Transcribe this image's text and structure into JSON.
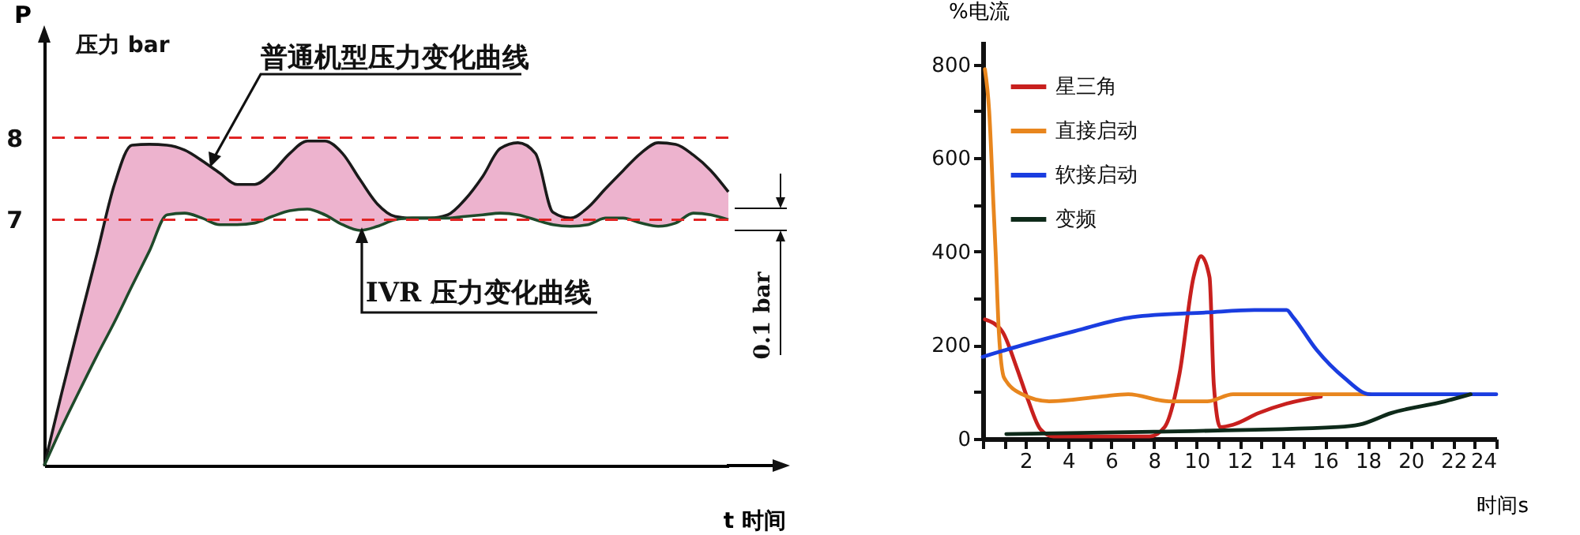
{
  "chart_data": [
    {
      "type": "line",
      "ylabel": "P",
      "xlabel": "t 时间",
      "tick_labels": "y",
      "legend": false,
      "grid": false,
      "annotations": [
        "压力 bar",
        "0.1 bar"
      ],
      "categories": [
        null,
        null,
        null,
        null,
        null,
        null,
        null,
        null,
        null,
        null,
        null,
        null,
        null,
        null,
        null,
        null,
        null,
        null,
        null,
        null,
        null,
        null,
        null,
        null,
        null,
        null,
        null,
        null,
        null,
        null,
        null,
        null,
        null,
        null,
        null,
        null,
        null,
        null,
        null,
        null
      ],
      "ylim": [
        4.0,
        9.2
      ],
      "yticks": [
        7,
        8
      ],
      "ref_lines": [
        {
          "axis": "y",
          "value": 8,
          "color": "#e02424",
          "line_style": "dashed"
        },
        {
          "axis": "y",
          "value": 7,
          "color": "#e02424",
          "line_style": "dashed"
        }
      ],
      "series": [
        {
          "name": "普通机型压力变化曲线",
          "color": "#1a1a1a",
          "values": [
            4.0,
            4.89,
            5.74,
            6.58,
            7.43,
            7.91,
            7.92,
            7.91,
            7.85,
            7.72,
            7.57,
            7.43,
            7.43,
            7.58,
            7.81,
            7.96,
            7.96,
            7.81,
            7.49,
            7.19,
            7.04,
            7.02,
            7.02,
            7.06,
            7.25,
            7.53,
            7.87,
            7.94,
            7.81,
            7.09,
            7.02,
            7.15,
            7.38,
            7.6,
            7.81,
            7.94,
            7.92,
            7.79,
            7.6,
            7.34
          ],
          "lower": [
            4.0,
            4.47,
            4.91,
            5.34,
            5.75,
            6.19,
            6.62,
            7.06,
            7.08,
            7.02,
            6.94,
            6.94,
            6.96,
            7.04,
            7.11,
            7.13,
            7.06,
            6.94,
            6.87,
            6.92,
            7.0,
            7.02,
            7.02,
            7.02,
            7.04,
            7.06,
            7.08,
            7.06,
            7.0,
            6.94,
            6.92,
            6.94,
            7.02,
            7.02,
            6.96,
            6.92,
            6.96,
            7.08,
            7.06,
            7.0
          ],
          "upper": [
            4.0,
            4.89,
            5.74,
            6.58,
            7.43,
            7.91,
            7.92,
            7.91,
            7.85,
            7.72,
            7.57,
            7.43,
            7.43,
            7.58,
            7.81,
            7.96,
            7.96,
            7.81,
            7.49,
            7.19,
            7.04,
            7.02,
            7.02,
            7.06,
            7.25,
            7.53,
            7.87,
            7.94,
            7.81,
            7.09,
            7.02,
            7.15,
            7.38,
            7.6,
            7.81,
            7.94,
            7.92,
            7.79,
            7.6,
            7.34
          ]
        },
        {
          "name": "IVR 压力变化曲线",
          "color": "#1e4a2a",
          "values": [
            4.0,
            4.47,
            4.91,
            5.34,
            5.75,
            6.19,
            6.62,
            7.06,
            7.08,
            7.02,
            6.94,
            6.94,
            6.96,
            7.04,
            7.11,
            7.13,
            7.06,
            6.94,
            6.87,
            6.92,
            7.0,
            7.02,
            7.02,
            7.02,
            7.04,
            7.06,
            7.08,
            7.06,
            7.0,
            6.94,
            6.92,
            6.94,
            7.02,
            7.02,
            6.96,
            6.92,
            6.96,
            7.08,
            7.06,
            7.0
          ]
        }
      ]
    },
    {
      "type": "line",
      "ylabel": "%电流",
      "xlabel": "时间s",
      "legend": "top left",
      "grid": false,
      "xlim": [
        0,
        24
      ],
      "xticks": [
        {
          "value": 0,
          "label": null
        },
        {
          "value": 1,
          "label": null
        },
        2,
        {
          "value": 3,
          "label": null
        },
        4,
        {
          "value": 5,
          "label": null
        },
        6,
        {
          "value": 7,
          "label": null
        },
        8,
        {
          "value": 9,
          "label": null
        },
        10,
        {
          "value": 11,
          "label": null
        },
        12,
        {
          "value": 13,
          "label": null
        },
        14,
        {
          "value": 15,
          "label": null
        },
        16,
        {
          "value": 17,
          "label": null
        },
        18,
        {
          "value": 19,
          "label": null
        },
        20,
        {
          "value": 21,
          "label": null
        },
        22,
        {
          "value": 23,
          "label": null
        },
        24
      ],
      "ylim": [
        0,
        850
      ],
      "yticks": [
        0,
        {
          "value": 100,
          "label": null
        },
        200,
        {
          "value": 300,
          "label": null
        },
        400,
        {
          "value": 500,
          "label": null
        },
        600,
        {
          "value": 700,
          "label": null
        },
        800
      ],
      "series": [
        {
          "name": "星三角",
          "color": "#c8201e",
          "x": [
            0.1,
            0.9,
            1.6,
            2.1,
            2.7,
            3.3,
            5.5,
            7.8,
            8.5,
            9.2,
            9.85,
            10.2,
            10.6,
            10.8,
            11.1,
            11.7,
            12.9,
            14.2,
            15.8
          ],
          "values": [
            255,
            230,
            150,
            85,
            20,
            5,
            5,
            5,
            25,
            140,
            345,
            390,
            345,
            115,
            25,
            30,
            55,
            75,
            90
          ]
        },
        {
          "name": "直接启动",
          "color": "#e8861e",
          "x": [
            0.1,
            0.3,
            0.5,
            0.6,
            0.75,
            1.0,
            1.85,
            3.1,
            5.5,
            6.8,
            8.7,
            10.5,
            11.7,
            14.2,
            18.1
          ],
          "values": [
            790,
            700,
            500,
            400,
            230,
            130,
            95,
            80,
            90,
            95,
            80,
            80,
            95,
            95,
            95
          ]
        },
        {
          "name": "软接启动",
          "color": "#1a3de0",
          "x": [
            0,
            1.85,
            4.3,
            7,
            10.5,
            12.7,
            14.2,
            14.5,
            15.6,
            16.9,
            18.1,
            24
          ],
          "values": [
            175,
            200,
            230,
            260,
            270,
            275,
            275,
            260,
            190,
            130,
            95,
            95
          ]
        },
        {
          "name": "变频",
          "color": "#0e2a1a",
          "x": [
            1.1,
            8,
            16.6,
            17.6,
            19.1,
            21.6,
            22.8
          ],
          "values": [
            10,
            15,
            25,
            30,
            55,
            80,
            95
          ]
        }
      ]
    }
  ]
}
